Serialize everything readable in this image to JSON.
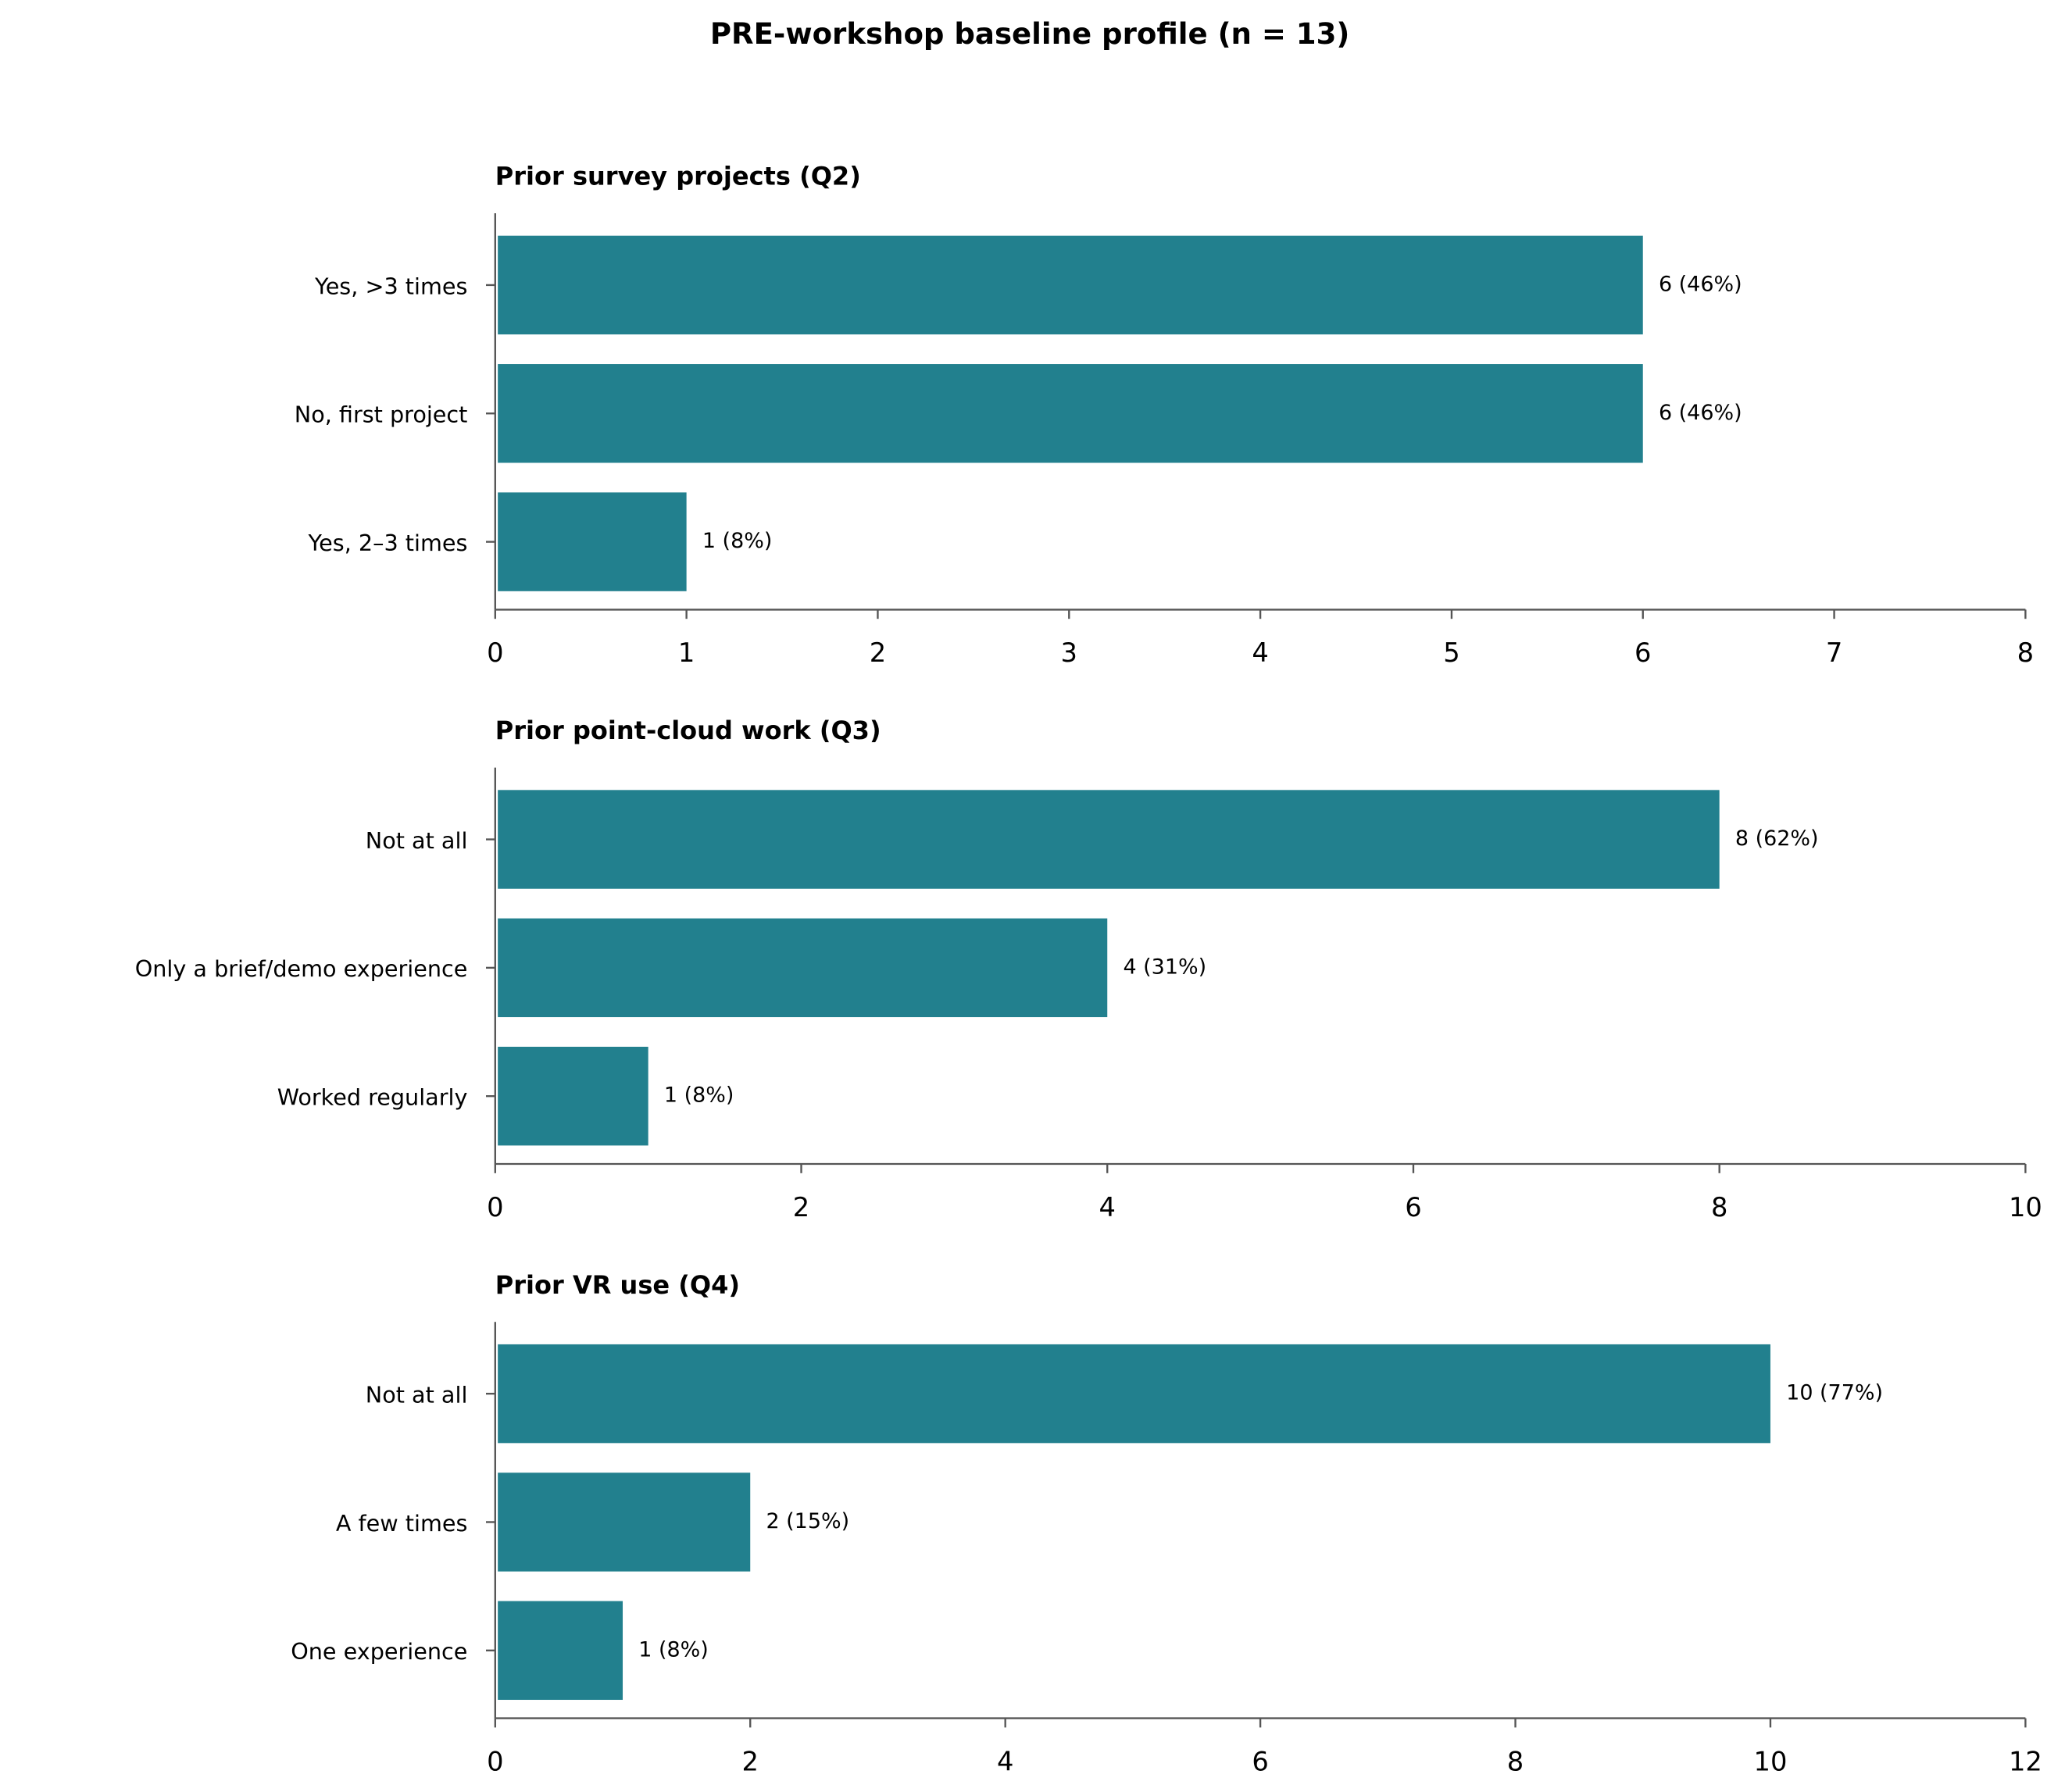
{
  "title": "PRE-workshop baseline profile (n = 13)",
  "chart_data": [
    {
      "type": "bar",
      "orientation": "horizontal",
      "title": "Prior survey projects (Q2)",
      "categories": [
        "Yes, >3 times",
        "No, first project",
        "Yes, 2–3 times"
      ],
      "values": [
        6,
        6,
        1
      ],
      "value_labels": [
        "6 (46%)",
        "6 (46%)",
        "1 (8%)"
      ],
      "color": "#22808e",
      "xlim": [
        0,
        8
      ],
      "xticks": [
        0,
        1,
        2,
        3,
        4,
        5,
        6,
        7,
        8
      ]
    },
    {
      "type": "bar",
      "orientation": "horizontal",
      "title": "Prior point-cloud work (Q3)",
      "categories": [
        "Not at all",
        "Only a brief/demo experience",
        "Worked regularly"
      ],
      "values": [
        8,
        4,
        1
      ],
      "value_labels": [
        "8 (62%)",
        "4 (31%)",
        "1 (8%)"
      ],
      "color": "#22808e",
      "xlim": [
        0,
        10
      ],
      "xticks": [
        0,
        2,
        4,
        6,
        8,
        10
      ]
    },
    {
      "type": "bar",
      "orientation": "horizontal",
      "title": "Prior VR use (Q4)",
      "categories": [
        "Not at all",
        "A few times",
        "One experience"
      ],
      "values": [
        10,
        2,
        1
      ],
      "value_labels": [
        "10 (77%)",
        "2 (15%)",
        "1 (8%)"
      ],
      "color": "#22808e",
      "xlim": [
        0,
        12
      ],
      "xticks": [
        0,
        2,
        4,
        6,
        8,
        10,
        12
      ]
    }
  ]
}
